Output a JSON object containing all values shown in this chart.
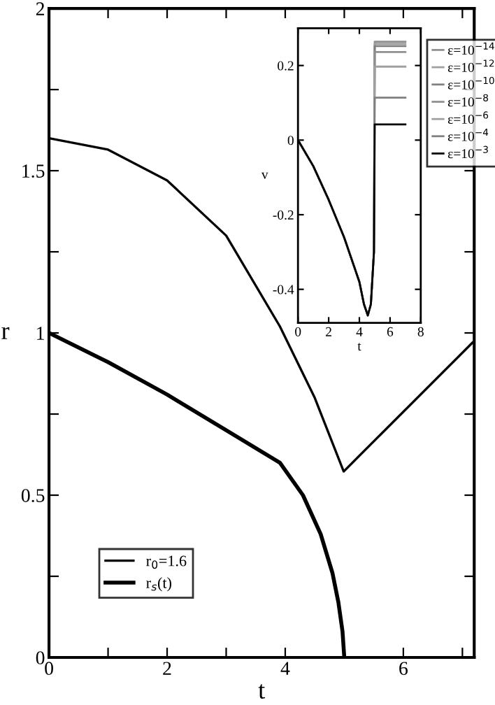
{
  "chart_data": [
    {
      "type": "line",
      "xlabel": "t",
      "ylabel": "r",
      "xlim": [
        0,
        7.2
      ],
      "ylim": [
        0,
        2
      ],
      "xticks": [
        0,
        {
          "value": 1,
          "label": null
        },
        2,
        {
          "value": 3,
          "label": null
        },
        4,
        {
          "value": 5,
          "label": null
        },
        6,
        {
          "value": 7,
          "label": null
        }
      ],
      "yticks": [
        0,
        {
          "value": 0.25,
          "label": null
        },
        0.5,
        {
          "value": 0.75,
          "label": null
        },
        1,
        {
          "value": 1.25,
          "label": null
        },
        1.5,
        {
          "value": 1.75,
          "label": null
        },
        2
      ],
      "legend": "bottom left",
      "grid": false,
      "series": [
        {
          "name": "r$_{0}$=1.6",
          "color": "#000000",
          "line_style": "solid",
          "x": [
            0,
            1,
            2,
            3,
            3.91,
            4.5,
            4.99,
            7.17
          ],
          "values": [
            1.6,
            1.565,
            1.47,
            1.3,
            1.02,
            0.8,
            0.573,
            0.97
          ]
        },
        {
          "name": "r$_{s}$(t)",
          "color": "#000000",
          "line_style": "solid",
          "x": [
            0,
            1,
            2,
            3,
            3.91,
            4.3,
            4.6,
            4.8,
            4.9,
            4.97,
            5.0
          ],
          "values": [
            1,
            0.91,
            0.81,
            0.7,
            0.6,
            0.5,
            0.38,
            0.26,
            0.17,
            0.08,
            0
          ]
        }
      ]
    },
    {
      "type": "line",
      "xlabel": "t",
      "ylabel": "v",
      "xlim": [
        0,
        8
      ],
      "ylim": [
        -0.49,
        0.3
      ],
      "xticks": [
        0,
        2,
        4,
        6,
        8
      ],
      "yticks": [
        -0.4,
        -0.2,
        0,
        0.2
      ],
      "legend": "right",
      "grid": false,
      "series": [
        {
          "name": "ε=10$^{−14}$",
          "color": "#909090",
          "x": [
            0,
            1,
            2,
            3,
            4,
            4.3,
            4.55,
            4.75,
            4.95,
            5.0,
            7.0
          ],
          "values": [
            0,
            -0.07,
            -0.16,
            -0.26,
            -0.38,
            -0.44,
            -0.47,
            -0.44,
            -0.3,
            0.264,
            0.264
          ]
        },
        {
          "name": "ε=10$^{−12}$",
          "color": "#a0a0a0",
          "x": [
            0,
            1,
            2,
            3,
            4,
            4.3,
            4.55,
            4.75,
            4.95,
            5.0,
            7.0
          ],
          "values": [
            0,
            -0.07,
            -0.16,
            -0.26,
            -0.38,
            -0.44,
            -0.47,
            -0.44,
            -0.3,
            0.258,
            0.258
          ]
        },
        {
          "name": "ε=10$^{−10}$",
          "color": "#808080",
          "x": [
            0,
            1,
            2,
            3,
            4,
            4.3,
            4.55,
            4.75,
            4.95,
            5.0,
            7.0
          ],
          "values": [
            0,
            -0.07,
            -0.16,
            -0.26,
            -0.38,
            -0.44,
            -0.47,
            -0.44,
            -0.3,
            0.252,
            0.252
          ]
        },
        {
          "name": "ε=10$^{−8}$",
          "color": "#909090",
          "x": [
            0,
            1,
            2,
            3,
            4,
            4.3,
            4.55,
            4.75,
            4.95,
            5.0,
            7.0
          ],
          "values": [
            0,
            -0.07,
            -0.16,
            -0.26,
            -0.38,
            -0.44,
            -0.47,
            -0.44,
            -0.3,
            0.236,
            0.236
          ]
        },
        {
          "name": "ε=10$^{−6}$",
          "color": "#a0a0a0",
          "x": [
            0,
            1,
            2,
            3,
            4,
            4.3,
            4.55,
            4.75,
            4.95,
            5.0,
            7.0
          ],
          "values": [
            0,
            -0.07,
            -0.16,
            -0.26,
            -0.38,
            -0.44,
            -0.47,
            -0.44,
            -0.3,
            0.197,
            0.197
          ]
        },
        {
          "name": "ε=10$^{−4}$",
          "color": "#808080",
          "x": [
            0,
            1,
            2,
            3,
            4,
            4.3,
            4.55,
            4.75,
            4.95,
            5.0,
            7.0
          ],
          "values": [
            0,
            -0.07,
            -0.16,
            -0.26,
            -0.38,
            -0.44,
            -0.47,
            -0.44,
            -0.3,
            0.114,
            0.114
          ]
        },
        {
          "name": "ε=10$^{−3}$",
          "color": "#000000",
          "x": [
            0,
            1,
            2,
            3,
            4,
            4.3,
            4.55,
            4.75,
            4.95,
            5.0,
            7.0
          ],
          "values": [
            0,
            -0.07,
            -0.16,
            -0.26,
            -0.38,
            -0.44,
            -0.47,
            -0.44,
            -0.3,
            0.042,
            0.042
          ]
        }
      ]
    }
  ]
}
